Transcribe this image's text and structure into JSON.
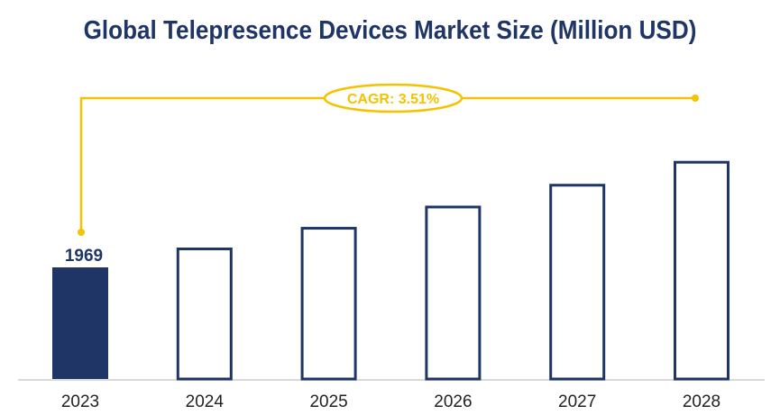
{
  "chart_data": {
    "type": "bar",
    "title": "Global Telepresence Devices Market Size (Million USD)",
    "categories": [
      "2023",
      "2024",
      "2025",
      "2026",
      "2027",
      "2028"
    ],
    "values": [
      1969,
      2038,
      2110,
      2184,
      2260,
      2340
    ],
    "data_labels": [
      "1969",
      "",
      "",
      "",
      "",
      ""
    ],
    "annotation": "CAGR: 3.51%",
    "ylim": [
      1580,
      2400
    ],
    "grid": false,
    "colors": {
      "bar": "#1f3566",
      "accent": "#f5c200",
      "baseline": "#d9d9d9"
    }
  }
}
